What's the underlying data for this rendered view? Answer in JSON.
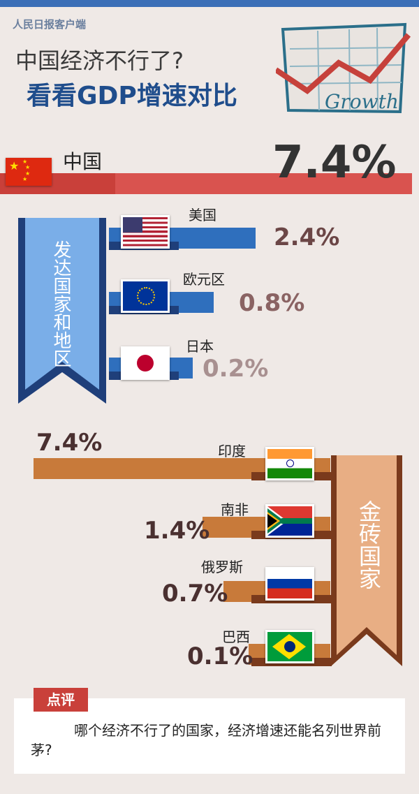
{
  "brand": "人民日报客户端",
  "title": {
    "line1": "中国经济不行了?",
    "line2": "看看GDP增速对比"
  },
  "badge_text": "Growth",
  "china": {
    "label": "中国",
    "value": "7.4%"
  },
  "developed": {
    "group_label": "发达国家和地区",
    "items": [
      {
        "label": "美国",
        "value": "2.4%"
      },
      {
        "label": "欧元区",
        "value": "0.8%"
      },
      {
        "label": "日本",
        "value": "0.2%"
      }
    ]
  },
  "brics": {
    "group_label": "金砖国家",
    "items": [
      {
        "label": "印度",
        "value": "7.4%"
      },
      {
        "label": "南非",
        "value": "1.4%"
      },
      {
        "label": "俄罗斯",
        "value": "0.7%"
      },
      {
        "label": "巴西",
        "value": "0.1%"
      }
    ]
  },
  "comment": {
    "tag": "点评",
    "text": "哪个经济不行了的国家，经济增速还能名列世界前茅?"
  },
  "colors": {
    "china": "#d9534f",
    "developed": "#2f6fbd",
    "brics": "#c87a3a"
  },
  "chart_data": {
    "type": "bar",
    "categories": [
      "中国",
      "美国",
      "欧元区",
      "日本",
      "印度",
      "南非",
      "俄罗斯",
      "巴西"
    ],
    "values": [
      7.4,
      2.4,
      0.8,
      0.2,
      7.4,
      1.4,
      0.7,
      0.1
    ],
    "title": "看看GDP增速对比"
  }
}
